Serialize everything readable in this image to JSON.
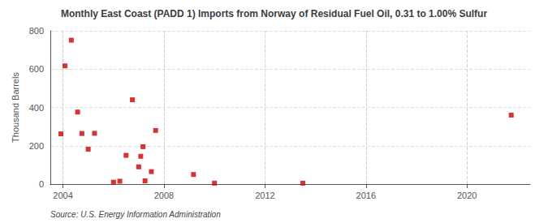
{
  "chart_data": {
    "type": "scatter",
    "title": "Monthly East Coast (PADD 1) Imports from Norway of Residual Fuel Oil, 0.31 to 1.00% Sulfur",
    "ylabel": "Thousand Barrels",
    "annotation": "Source: U.S. Energy Information Administration",
    "color": "#cc0000",
    "marker": "square",
    "grid": true,
    "xlim": [
      2003.5,
      2022.5
    ],
    "ylim": [
      0,
      800
    ],
    "xticks": [
      2004,
      2008,
      2012,
      2016,
      2020
    ],
    "yticks": [
      0,
      200,
      400,
      600,
      800
    ],
    "x": [
      2003.92,
      2004.08,
      2004.33,
      2004.58,
      2004.75,
      2005.0,
      2005.25,
      2006.0,
      2006.25,
      2006.5,
      2006.75,
      2007.0,
      2007.08,
      2007.17,
      2007.25,
      2007.5,
      2007.67,
      2009.17,
      2010.0,
      2013.5,
      2021.75
    ],
    "values": [
      262,
      617,
      751,
      376,
      264,
      182,
      265,
      10,
      15,
      150,
      440,
      90,
      145,
      195,
      17,
      65,
      280,
      50,
      5,
      5,
      360
    ]
  }
}
